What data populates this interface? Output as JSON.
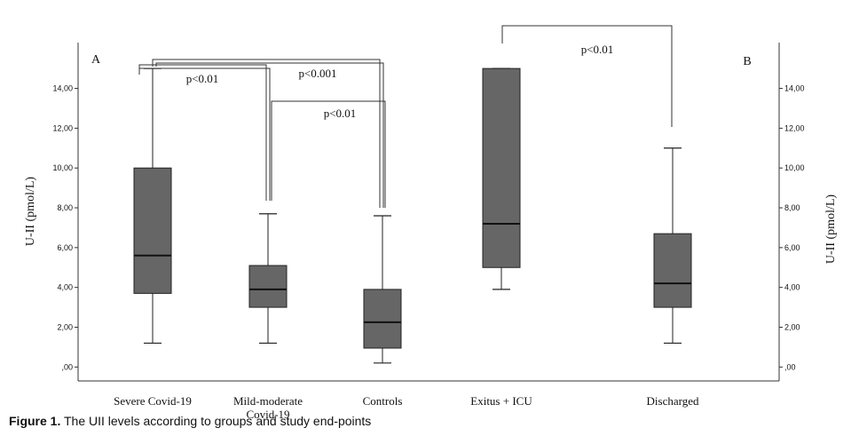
{
  "chart_data": [
    {
      "panel": "A",
      "type": "boxplot",
      "ylabel": "U-II (pmol/L)",
      "ylim": [
        -0.7,
        16.3
      ],
      "yticks": [
        0,
        2,
        4,
        6,
        8,
        10,
        12,
        14
      ],
      "ytick_labels": [
        ",00",
        "2,00",
        "4,00",
        "6,00",
        "8,00",
        "10,00",
        "12,00",
        "14,00"
      ],
      "categories": [
        "Severe Covid-19",
        "Mild-moderate|Covid-19",
        "Controls"
      ],
      "boxes": [
        {
          "min": 1.2,
          "q1": 3.7,
          "median": 5.6,
          "q3": 10.0,
          "max": 15.0
        },
        {
          "min": 1.2,
          "q1": 3.0,
          "median": 3.9,
          "q3": 5.1,
          "max": 7.7
        },
        {
          "min": 0.2,
          "q1": 0.95,
          "median": 2.25,
          "q3": 3.9,
          "max": 7.6
        }
      ],
      "annotations": [
        "p<0.01",
        "p<0.001",
        "p<0.01"
      ]
    },
    {
      "panel": "B",
      "type": "boxplot",
      "ylabel": "U-II (pmol/L)",
      "ylim": [
        -0.7,
        16.3
      ],
      "yticks": [
        0,
        2,
        4,
        6,
        8,
        10,
        12,
        14
      ],
      "ytick_labels": [
        ",00",
        "2,00",
        "4,00",
        "6,00",
        "8,00",
        "10,00",
        "12,00",
        "14,00"
      ],
      "categories": [
        "Exitus + ICU",
        "Discharged"
      ],
      "boxes": [
        {
          "min": 3.9,
          "q1": 5.0,
          "median": 7.2,
          "q3": 15.0,
          "max": 15.0
        },
        {
          "min": 1.2,
          "q1": 3.0,
          "median": 4.2,
          "q3": 6.7,
          "max": 11.0
        }
      ],
      "annotations": [
        "p<0.01"
      ]
    }
  ],
  "caption": {
    "label": "Figure 1.",
    "text": " The UII levels according to groups and study end-points"
  }
}
